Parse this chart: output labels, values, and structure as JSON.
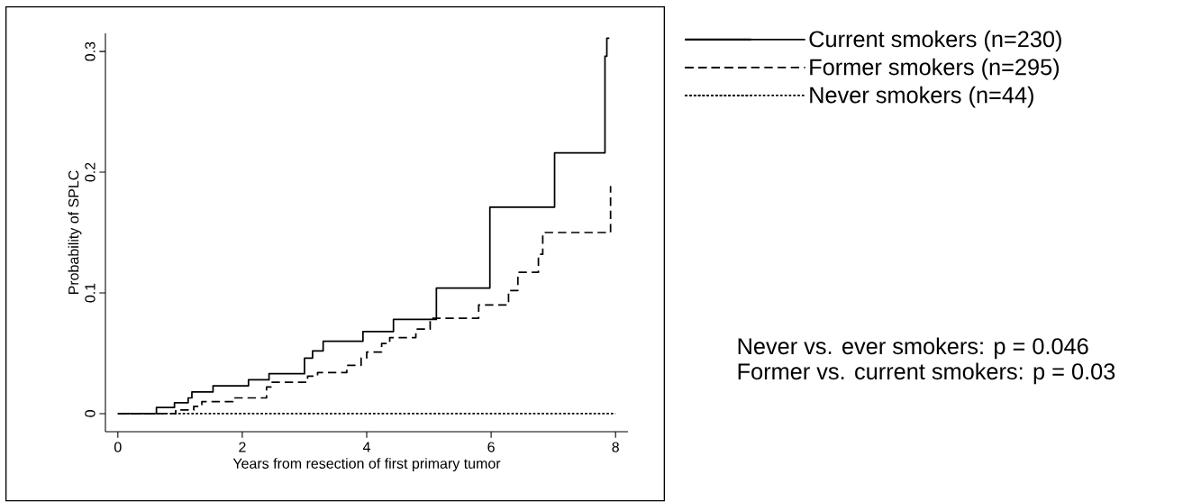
{
  "chart_data": {
    "type": "step",
    "xlabel": "Years from resection of first primary tumor",
    "ylabel": "Probability of SPLC",
    "xlim": [
      -0.2,
      8.2
    ],
    "ylim": [
      -0.015,
      0.315
    ],
    "xticks": [
      0,
      2,
      4,
      6,
      8
    ],
    "yticks": [
      0,
      0.1,
      0.2,
      0.3
    ],
    "grid": false,
    "legend": "right",
    "series": [
      {
        "name": "Current smokers (n=230)",
        "color": "#000000",
        "line_style": "solid",
        "x": [
          0,
          0.62,
          0.91,
          1.13,
          1.19,
          1.53,
          2.1,
          2.43,
          3.0,
          3.13,
          3.3,
          3.94,
          4.43,
          5.12,
          5.98,
          7.02,
          7.83,
          7.86,
          7.9
        ],
        "values": [
          0,
          0.005,
          0.009,
          0.013,
          0.018,
          0.023,
          0.028,
          0.033,
          0.046,
          0.052,
          0.06,
          0.068,
          0.078,
          0.104,
          0.171,
          0.216,
          0.296,
          0.311,
          0.311
        ]
      },
      {
        "name": "Former smokers (n=295)",
        "color": "#000000",
        "line_style": "dashed",
        "x": [
          0,
          0.93,
          1.22,
          1.35,
          1.85,
          2.39,
          2.46,
          3.05,
          3.21,
          3.68,
          3.91,
          4.0,
          4.24,
          4.37,
          4.79,
          5.02,
          5.8,
          6.28,
          6.43,
          6.76,
          6.83,
          7.92,
          7.93
        ],
        "values": [
          0,
          0.003,
          0.006,
          0.01,
          0.013,
          0.022,
          0.026,
          0.031,
          0.034,
          0.04,
          0.046,
          0.051,
          0.058,
          0.063,
          0.07,
          0.079,
          0.09,
          0.102,
          0.117,
          0.132,
          0.15,
          0.188,
          0.188
        ]
      },
      {
        "name": "Never smokers (n=44)",
        "color": "#000000",
        "line_style": "dotted",
        "x": [
          0,
          8
        ],
        "values": [
          0,
          0
        ]
      }
    ],
    "annotations": [
      "Never vs. ever smokers: p = 0.046",
      "Former vs. current smokers: p = 0.03"
    ]
  }
}
